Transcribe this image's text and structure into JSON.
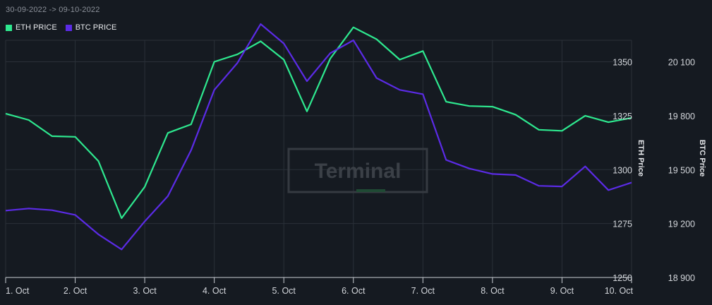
{
  "header": {
    "date_range": "30-09-2022 -> 09-10-2022"
  },
  "watermark": {
    "text": "Terminal"
  },
  "colors": {
    "eth": "#2ee88f",
    "btc": "#5b2be6",
    "grid": "#2a3038",
    "background": "#151a21"
  },
  "chart_data": {
    "type": "line",
    "x_ticks": [
      "1. Oct",
      "2. Oct",
      "3. Oct",
      "4. Oct",
      "5. Oct",
      "6. Oct",
      "7. Oct",
      "8. Oct",
      "9. Oct",
      "10. Oct"
    ],
    "x_range": [
      1,
      10
    ],
    "left_axis": {
      "title": "ETH Price",
      "range": [
        1250,
        1360
      ],
      "ticks": [
        1250,
        1275,
        1300,
        1325,
        1350
      ],
      "tick_labels": [
        "1250",
        "1275",
        "1300",
        "1325",
        "1350"
      ]
    },
    "right_axis": {
      "title": "BTC Price",
      "range": [
        18900,
        20200
      ],
      "ticks": [
        18900,
        19200,
        19500,
        19800,
        20100
      ],
      "tick_labels": [
        "18 900",
        "19 200",
        "19 500",
        "19 800",
        "20 100"
      ]
    },
    "series": [
      {
        "name": "ETH PRICE",
        "axis": "left",
        "x": [
          1,
          1.333,
          1.667,
          2,
          2.333,
          2.667,
          3,
          3.333,
          3.667,
          4,
          4.333,
          4.667,
          5,
          5.333,
          5.667,
          6,
          6.333,
          6.667,
          7,
          7.333,
          7.667,
          8,
          8.333,
          8.667,
          9,
          9.333,
          9.667,
          10
        ],
        "values": [
          1326,
          1323,
          1315.5,
          1315.2,
          1304,
          1277.5,
          1292,
          1317,
          1321,
          1350,
          1353.5,
          1359.5,
          1351,
          1327,
          1351.5,
          1366,
          1360.5,
          1351,
          1355,
          1331.5,
          1329.5,
          1329.2,
          1325.5,
          1318.5,
          1318,
          1325,
          1322,
          1324
        ]
      },
      {
        "name": "BTC PRICE",
        "axis": "left",
        "x": [
          1,
          1.333,
          1.667,
          2,
          2.333,
          2.667,
          3,
          3.333,
          3.667,
          4,
          4.333,
          4.667,
          5,
          5.333,
          5.667,
          6,
          6.333,
          6.667,
          7,
          7.333,
          7.667,
          8,
          8.333,
          8.667,
          9,
          9.333,
          9.667,
          10
        ],
        "values": [
          1281,
          1282,
          1281.2,
          1279,
          1270,
          1263,
          1276,
          1287.7,
          1309,
          1337,
          1349.5,
          1367.5,
          1358.5,
          1341,
          1354,
          1360,
          1342.5,
          1337,
          1335,
          1304.5,
          1300.5,
          1298,
          1297.5,
          1292.5,
          1292.2,
          1301.5,
          1290.5,
          1294
        ]
      }
    ],
    "grid": true,
    "legend_position": "top-left"
  }
}
